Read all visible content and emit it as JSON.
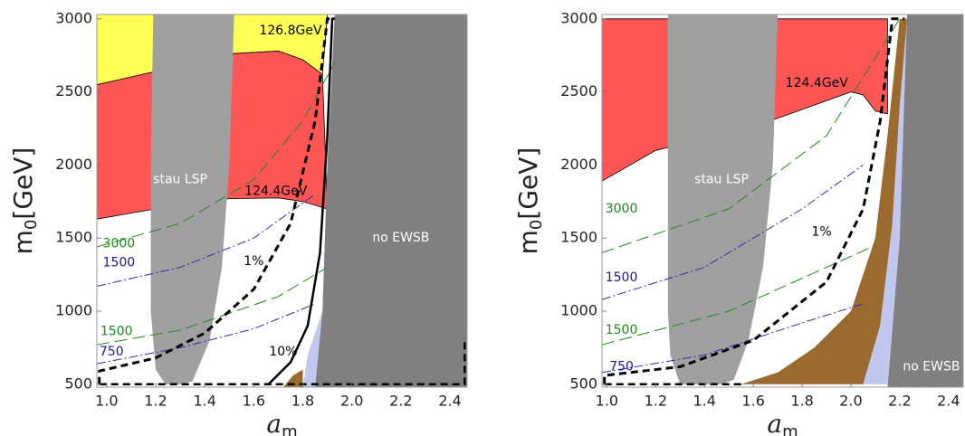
{
  "chart_data": [
    {
      "type": "region",
      "xlim": [
        0.96,
        2.47
      ],
      "ylim": [
        480,
        3030
      ],
      "xticks": [
        {
          "value": 1.0,
          "label": "1.0"
        },
        {
          "value": 1.2,
          "label": "1.2"
        },
        {
          "value": 1.4,
          "label": "1.4"
        },
        {
          "value": 1.6,
          "label": "1.6"
        },
        {
          "value": 1.8,
          "label": "1.8"
        },
        {
          "value": 2.0,
          "label": "2.0"
        },
        {
          "value": 2.2,
          "label": "2.2"
        },
        {
          "value": 2.4,
          "label": "2.4"
        }
      ],
      "yticks": [
        500,
        1000,
        1500,
        2000,
        2500,
        3000
      ],
      "xlabel": [
        "a",
        "m"
      ],
      "ylabel": [
        "m",
        "0",
        "[GeV]"
      ],
      "annotations": [
        {
          "text": "126.8GeV",
          "color": "#000000"
        },
        {
          "text": "stau LSP",
          "color": "#ffffff"
        },
        {
          "text": "124.4GeV",
          "color": "#000000"
        },
        {
          "text": "no EWSB",
          "color": "#ffffff"
        },
        {
          "text": "1%",
          "color": "#000000"
        },
        {
          "text": "10%",
          "color": "#000000"
        },
        {
          "text": "3000",
          "color": "#1a8a1a"
        },
        {
          "text": "1500",
          "color": "#1a1a9a"
        },
        {
          "text": "1500",
          "color": "#1a8a1a"
        },
        {
          "text": "750",
          "color": "#1a1a9a"
        }
      ]
    },
    {
      "type": "region",
      "xlim": [
        0.98,
        2.46
      ],
      "ylim": [
        480,
        3030
      ],
      "xticks": [
        {
          "value": 1.0,
          "label": "1.0"
        },
        {
          "value": 1.2,
          "label": "1.2"
        },
        {
          "value": 1.4,
          "label": "1.4"
        },
        {
          "value": 1.6,
          "label": "1.6"
        },
        {
          "value": 1.8,
          "label": "1.8"
        },
        {
          "value": 2.0,
          "label": "2.0"
        },
        {
          "value": 2.2,
          "label": "2.2"
        },
        {
          "value": 2.4,
          "label": "2.4"
        }
      ],
      "yticks": [
        500,
        1000,
        1500,
        2000,
        2500,
        3000
      ],
      "xlabel": [
        "a",
        "m"
      ],
      "ylabel": [
        "m",
        "0",
        "[GeV]"
      ],
      "annotations": [
        {
          "text": "124.4GeV",
          "color": "#000000"
        },
        {
          "text": "stau LSP",
          "color": "#ffffff"
        },
        {
          "text": "1%",
          "color": "#000000"
        },
        {
          "text": "3000",
          "color": "#1a8a1a"
        },
        {
          "text": "1500",
          "color": "#1a1a9a"
        },
        {
          "text": "1500",
          "color": "#1a8a1a"
        },
        {
          "text": "750",
          "color": "#1a1a9a"
        },
        {
          "text": "no EWSB",
          "color": "#ffffff"
        }
      ]
    }
  ]
}
